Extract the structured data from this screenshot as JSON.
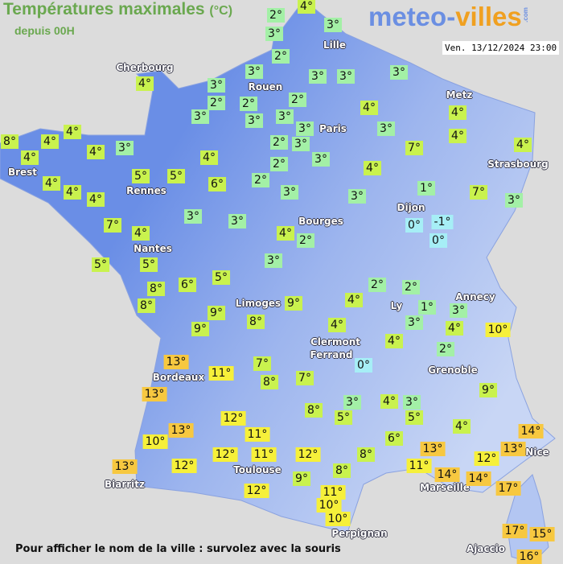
{
  "header": {
    "title": "Températures maximales",
    "unit": "(°C)",
    "subtitle": "depuis 00H"
  },
  "logo": {
    "part1": "meteo-",
    "part2": "villes",
    "suffix": ".com"
  },
  "date": "Ven. 13/12/2024 23:00",
  "footer": "Pour afficher le nom de la ville : survolez avec la souris",
  "palette": {
    "cold": "#a6eef6",
    "cool": "#a3f0a6",
    "mild": "#c9f24e",
    "warm": "#f6f03a",
    "hot": "#f7c840",
    "land_west": "#6a8ee6",
    "land_east": "#c4d3f4",
    "sea": "#dcdcdc"
  },
  "cities": [
    "Lille",
    "Cherbourg",
    "Rouen",
    "Metz",
    "Paris",
    "Brest",
    "Strasbourg",
    "Rennes",
    "Dijon",
    "Bourges",
    "Nantes",
    "Annecy",
    "Limoges",
    "Ly",
    "Clermont",
    "Ferrand",
    "Grenoble",
    "Bordeaux",
    "Toulouse",
    "Biarritz",
    "Marseille",
    "Perpignan",
    "Nice",
    "Ajaccio"
  ],
  "stations": [
    4,
    2,
    3,
    3,
    2,
    3,
    3,
    3,
    3,
    4,
    3,
    2,
    2,
    2,
    3,
    3,
    3,
    4,
    4,
    4,
    3,
    3,
    4,
    8,
    4,
    4,
    4,
    3,
    2,
    3,
    7,
    4,
    3,
    4,
    2,
    4,
    4,
    5,
    5,
    6,
    2,
    4,
    4,
    3,
    3,
    1,
    7,
    3,
    7,
    4,
    3,
    3,
    4,
    2,
    0,
    -1,
    0,
    5,
    5,
    3,
    6,
    5,
    2,
    2,
    8,
    8,
    9,
    4,
    9,
    1,
    3,
    8,
    3,
    4,
    9,
    4,
    10,
    4,
    2,
    0,
    13,
    7,
    11,
    8,
    7,
    9,
    13,
    3,
    4,
    3,
    8,
    5,
    5,
    12,
    4,
    13,
    11,
    10,
    6,
    14,
    13,
    12,
    11,
    12,
    8,
    13,
    11,
    12,
    13,
    12,
    14,
    8,
    9,
    14,
    17,
    12,
    11,
    10,
    10,
    17,
    15,
    16
  ]
}
